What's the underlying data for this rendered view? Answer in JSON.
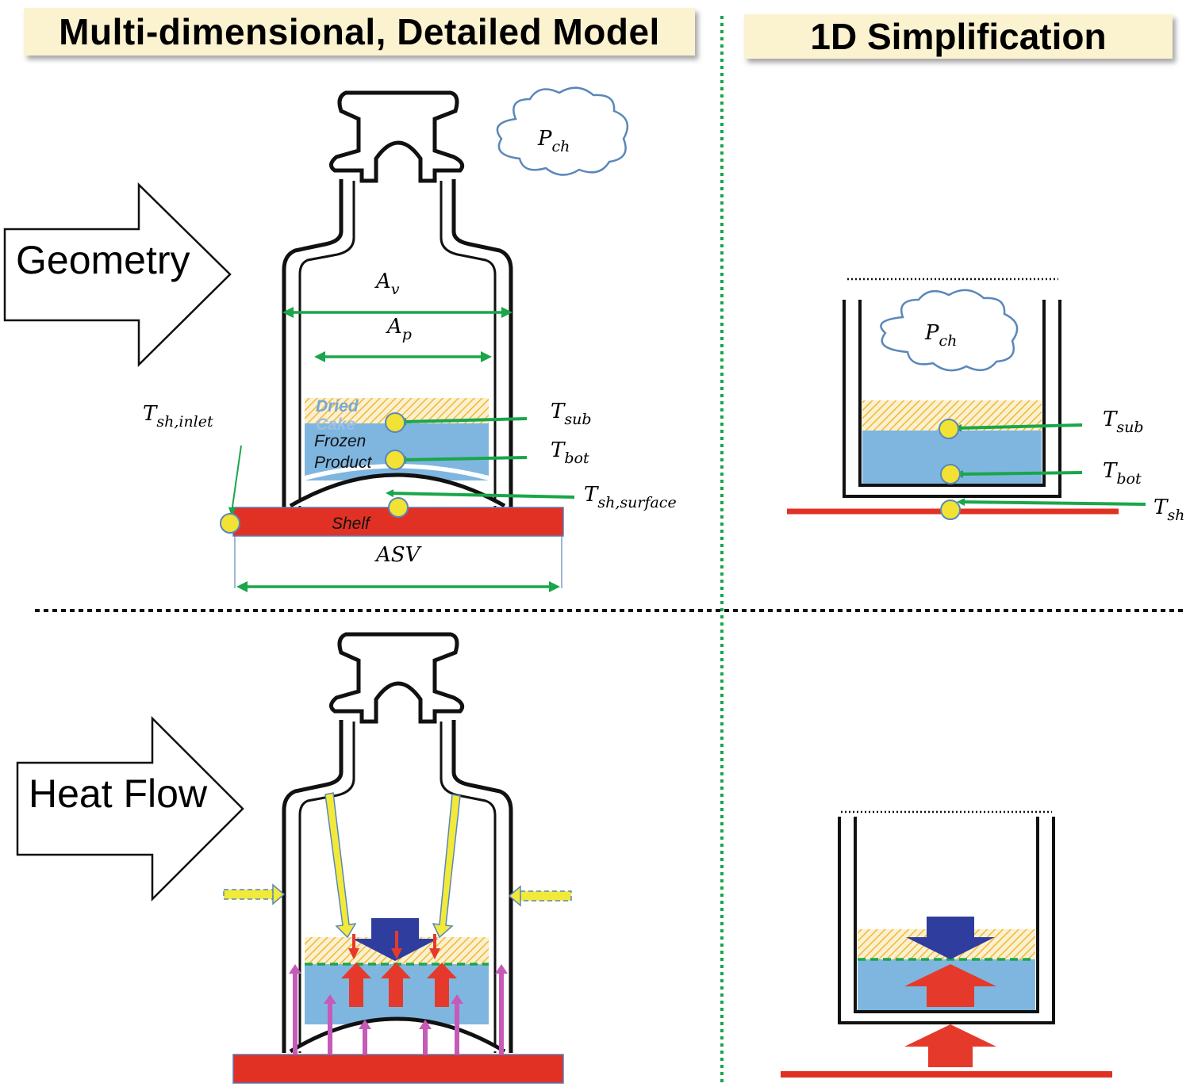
{
  "headers": {
    "left": "Multi-dimensional, Detailed Model",
    "right": "1D Simplification"
  },
  "arrows": {
    "geometry": "Geometry",
    "heat_flow": "Heat Flow"
  },
  "detailed": {
    "av": {
      "base": "A",
      "sub": "v"
    },
    "ap": {
      "base": "A",
      "sub": "p"
    },
    "pch": {
      "base": "P",
      "sub": "ch"
    },
    "tsub": {
      "base": "T",
      "sub": "sub"
    },
    "tbot": {
      "base": "T",
      "sub": "bot"
    },
    "tsh_surface": {
      "base": "T",
      "sub": "sh,surface"
    },
    "tsh_inlet": {
      "base": "T",
      "sub": "sh,inlet"
    },
    "asv": "ASV",
    "shelf": "Shelf",
    "dried": "Dried",
    "cake": "Cake",
    "frozen": "Frozen",
    "product": "Product"
  },
  "simplified": {
    "pch": {
      "base": "P",
      "sub": "ch"
    },
    "tsub": {
      "base": "T",
      "sub": "sub"
    },
    "tbot": {
      "base": "T",
      "sub": "bot"
    },
    "tsh": {
      "base": "T",
      "sub": "sh"
    }
  },
  "colors": {
    "header_bg": "#fbf2cf",
    "shelf": "#e03124",
    "frozen": "#7fb6e0",
    "dried": "#f5c531",
    "dimension_arrow": "#1aa64a",
    "sensor": "#f2e233",
    "heat_red": "#e53a2b",
    "heat_blue": "#2f3e9e",
    "radiation_yellow": "#f2ea3a",
    "pink": "#c55ab8",
    "cloud": "#5b87b9"
  }
}
